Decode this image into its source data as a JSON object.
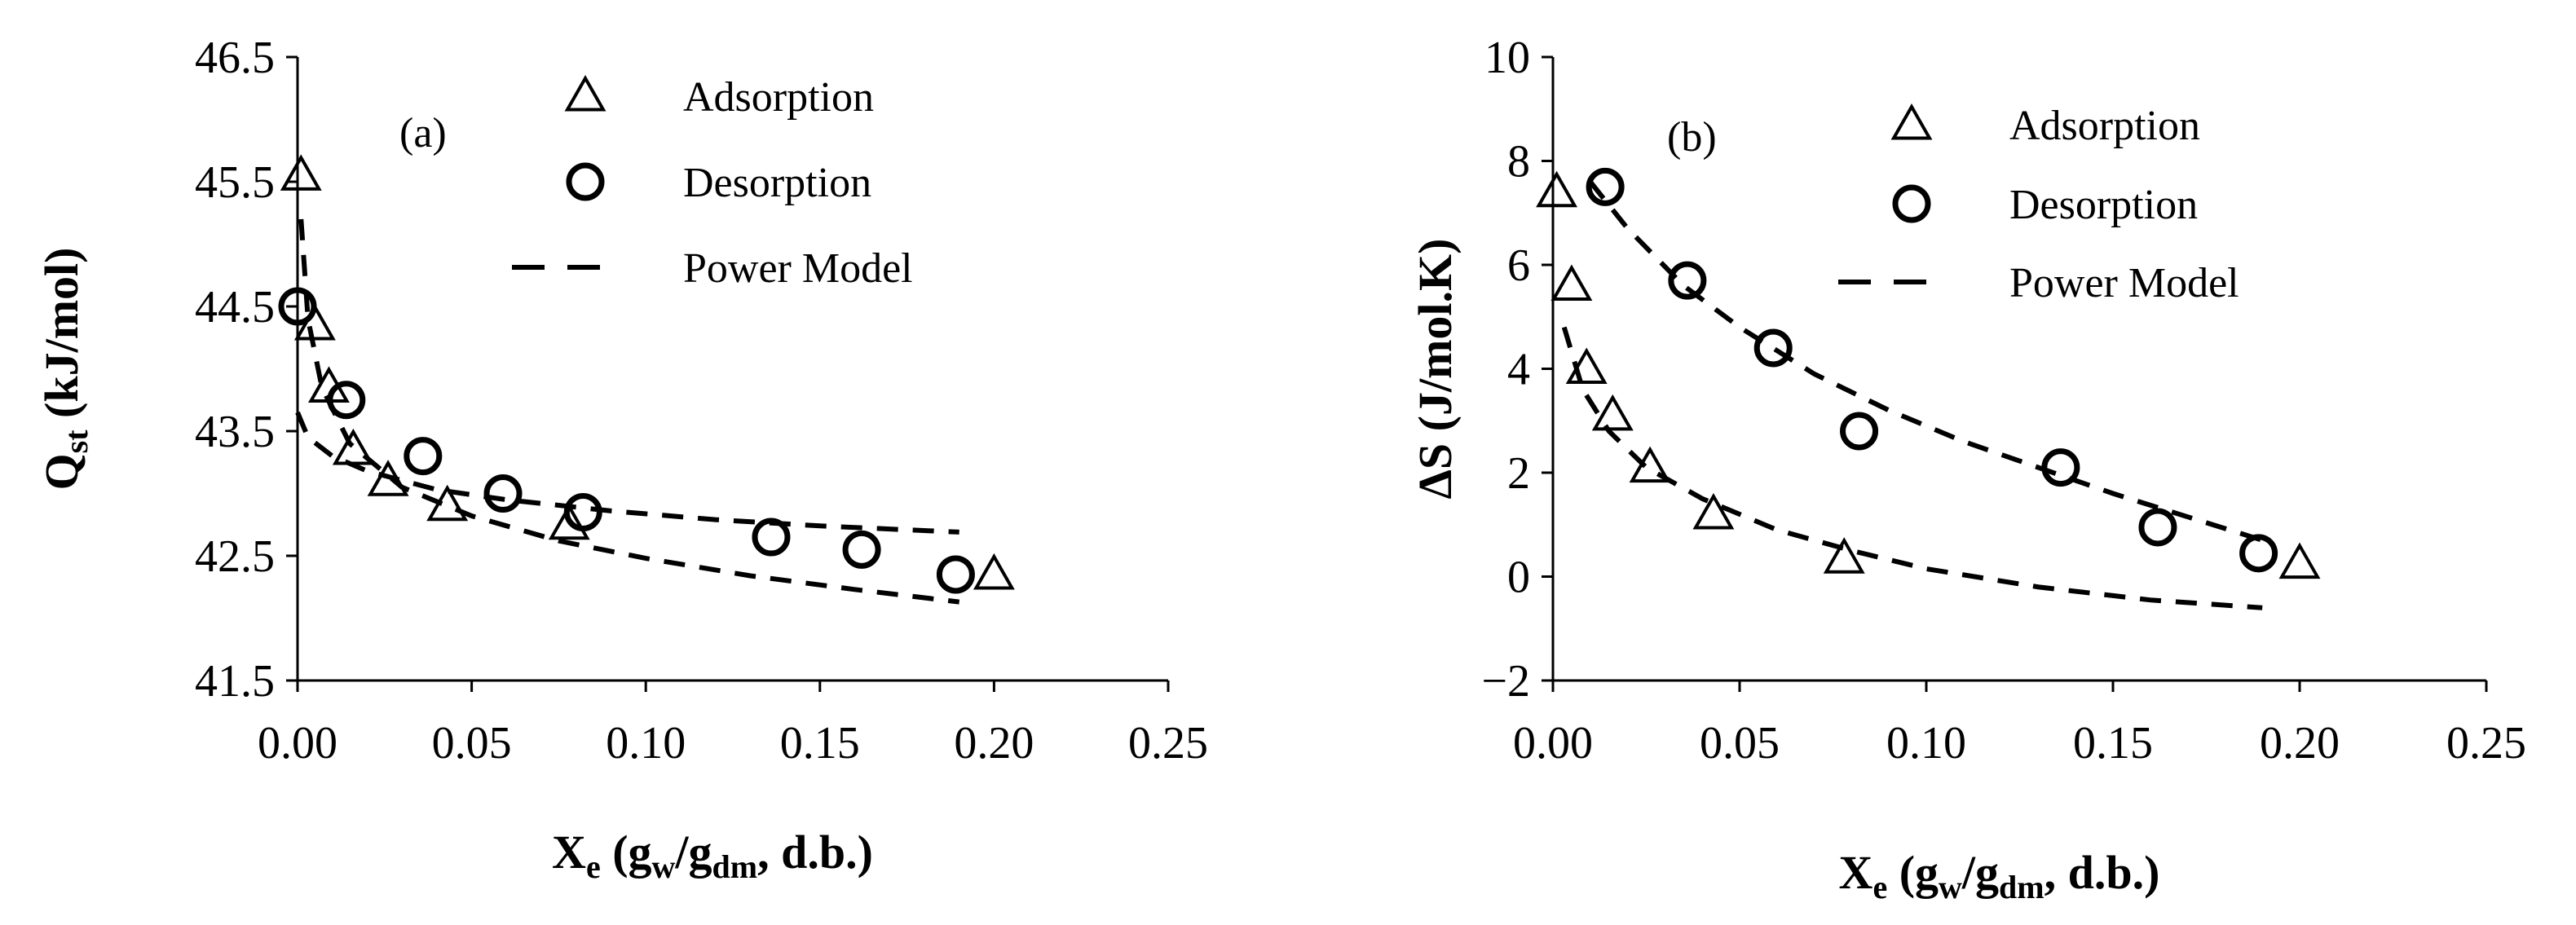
{
  "chart_data": [
    {
      "type": "scatter",
      "panel_label": "(a)",
      "xlabel": {
        "main": "X",
        "sub": "e",
        "paren": "(g",
        "sub2": "w",
        "slash": "/g",
        "sub3": "dm",
        "tail": ", d.b.)"
      },
      "ylabel": {
        "main": "Q",
        "sub": "st",
        "tail": " (kJ/mol)"
      },
      "xlim": [
        0,
        0.25
      ],
      "ylim": [
        41.5,
        46.5
      ],
      "xticks": [
        "0.00",
        "0.05",
        "0.10",
        "0.15",
        "0.20",
        "0.25"
      ],
      "yticks": [
        "41.5",
        "42.5",
        "43.5",
        "44.5",
        "45.5",
        "46.5"
      ],
      "legend": [
        "Adsorption",
        "Desorption",
        "Power Model"
      ],
      "legend_position": "top-right",
      "series": [
        {
          "name": "Adsorption",
          "marker": "triangle",
          "x": [
            0.001,
            0.005,
            0.009,
            0.016,
            0.026,
            0.043,
            0.078,
            0.2
          ],
          "y": [
            45.55,
            44.35,
            43.85,
            43.35,
            43.1,
            42.9,
            42.75,
            42.35
          ]
        },
        {
          "name": "Desorption",
          "marker": "circle",
          "x": [
            0.0,
            0.014,
            0.036,
            0.059,
            0.082,
            0.136,
            0.162,
            0.189
          ],
          "y": [
            44.5,
            43.75,
            43.3,
            43.0,
            42.85,
            42.65,
            42.55,
            42.35
          ]
        },
        {
          "name": "Power Model",
          "marker": "dashed",
          "x": [
            0.001,
            0.003,
            0.007,
            0.015,
            0.03,
            0.05,
            0.075,
            0.1,
            0.13,
            0.16,
            0.19
          ],
          "y": [
            45.2,
            44.4,
            43.85,
            43.4,
            43.05,
            42.82,
            42.62,
            42.48,
            42.34,
            42.23,
            42.13
          ]
        },
        {
          "name": "Power Model",
          "marker": "dashed",
          "x": [
            0.0,
            0.003,
            0.01,
            0.02,
            0.04,
            0.06,
            0.09,
            0.12,
            0.15,
            0.19
          ],
          "y": [
            43.65,
            43.45,
            43.3,
            43.18,
            43.03,
            42.95,
            42.86,
            42.79,
            42.74,
            42.69
          ]
        }
      ]
    },
    {
      "type": "scatter",
      "panel_label": "(b)",
      "xlabel": {
        "main": "X",
        "sub": "e",
        "paren": "(g",
        "sub2": "w",
        "slash": "/g",
        "sub3": "dm",
        "tail": ", d.b.)"
      },
      "ylabel": {
        "main": "ΔS",
        "sub": "",
        "tail": " (J/mol.K)"
      },
      "xlim": [
        0,
        0.25
      ],
      "ylim": [
        -2,
        10
      ],
      "xticks": [
        "0.00",
        "0.05",
        "0.10",
        "0.15",
        "0.20",
        "0.25"
      ],
      "yticks": [
        "−2",
        "0",
        "2",
        "4",
        "6",
        "8",
        "10"
      ],
      "legend": [
        "Adsorption",
        "Desorption",
        "Power Model"
      ],
      "legend_position": "top-right",
      "series": [
        {
          "name": "Adsorption",
          "marker": "triangle",
          "x": [
            0.001,
            0.005,
            0.009,
            0.016,
            0.026,
            0.043,
            0.078,
            0.2
          ],
          "y": [
            7.4,
            5.6,
            4.0,
            3.1,
            2.1,
            1.2,
            0.35,
            0.25
          ]
        },
        {
          "name": "Desorption",
          "marker": "circle",
          "x": [
            0.014,
            0.036,
            0.059,
            0.082,
            0.136,
            0.162,
            0.189
          ],
          "y": [
            7.5,
            5.7,
            4.4,
            2.8,
            2.1,
            0.95,
            0.45
          ]
        },
        {
          "name": "Power Model",
          "marker": "dashed",
          "x": [
            0.003,
            0.008,
            0.015,
            0.025,
            0.04,
            0.06,
            0.08,
            0.1,
            0.13,
            0.16,
            0.19
          ],
          "y": [
            4.8,
            3.6,
            2.8,
            2.1,
            1.5,
            0.9,
            0.5,
            0.15,
            -0.2,
            -0.45,
            -0.6
          ]
        },
        {
          "name": "Power Model",
          "marker": "dashed",
          "x": [
            0.01,
            0.02,
            0.035,
            0.05,
            0.07,
            0.09,
            0.11,
            0.13,
            0.15,
            0.17,
            0.19
          ],
          "y": [
            7.6,
            6.7,
            5.6,
            4.8,
            3.9,
            3.2,
            2.6,
            2.1,
            1.6,
            1.15,
            0.7
          ]
        }
      ]
    }
  ]
}
